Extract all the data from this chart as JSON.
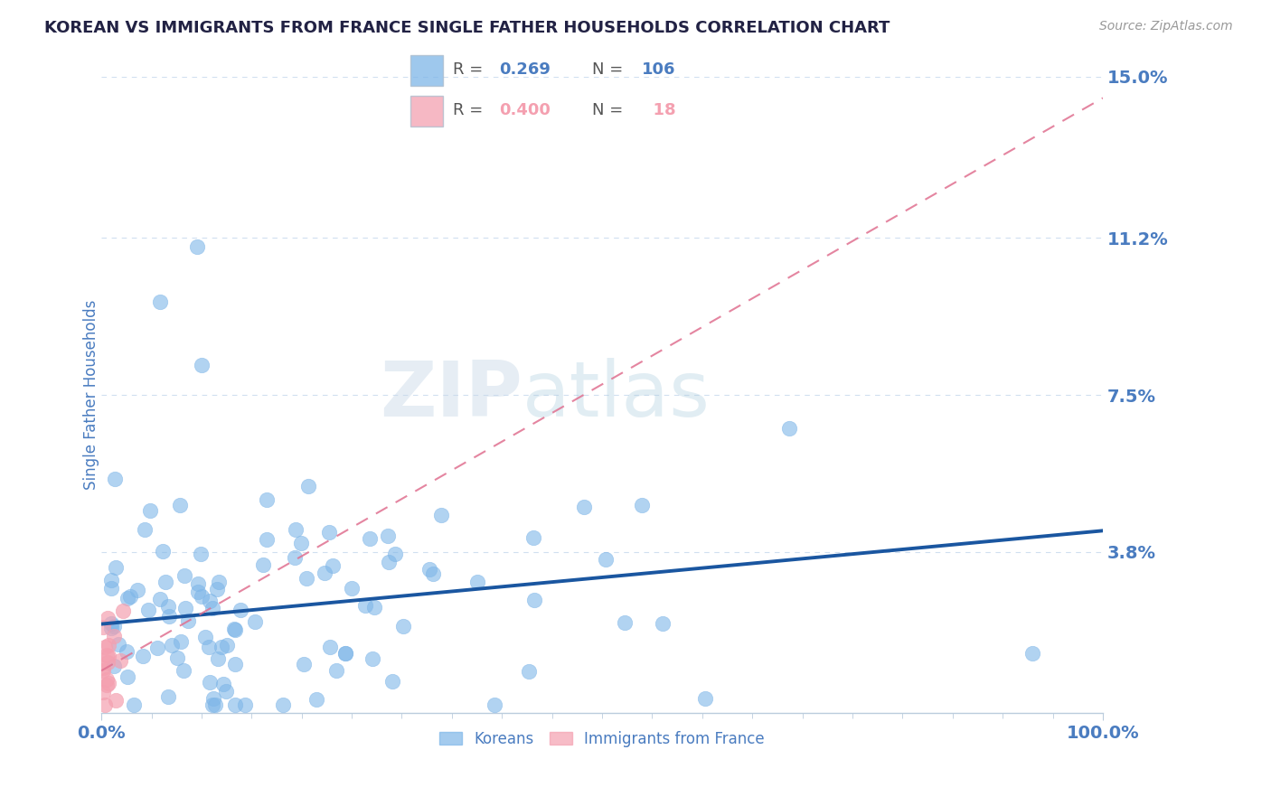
{
  "title": "KOREAN VS IMMIGRANTS FROM FRANCE SINGLE FATHER HOUSEHOLDS CORRELATION CHART",
  "source_text": "Source: ZipAtlas.com",
  "ylabel": "Single Father Households",
  "R1": 0.269,
  "N1": 106,
  "R2": 0.4,
  "N2": 18,
  "xlim": [
    0,
    1.0
  ],
  "ylim": [
    0,
    0.15
  ],
  "yticks": [
    0.038,
    0.075,
    0.112,
    0.15
  ],
  "ytick_labels": [
    "3.8%",
    "7.5%",
    "11.2%",
    "15.0%"
  ],
  "xticks": [
    0.0,
    1.0
  ],
  "xtick_labels": [
    "0.0%",
    "100.0%"
  ],
  "color_korean": "#7EB6E8",
  "color_france": "#F4A0B0",
  "color_line_korean": "#1A56A0",
  "color_line_france": "#E07090",
  "legend_label_1": "Koreans",
  "legend_label_2": "Immigrants from France",
  "title_color": "#222244",
  "tick_color": "#4A7CC0",
  "background_color": "#FFFFFF",
  "grid_color": "#D0DFF0",
  "watermark_color": "#D5E5F5",
  "korean_line_intercept": 0.021,
  "korean_line_slope": 0.022,
  "france_line_intercept": 0.01,
  "france_line_slope": 0.135
}
